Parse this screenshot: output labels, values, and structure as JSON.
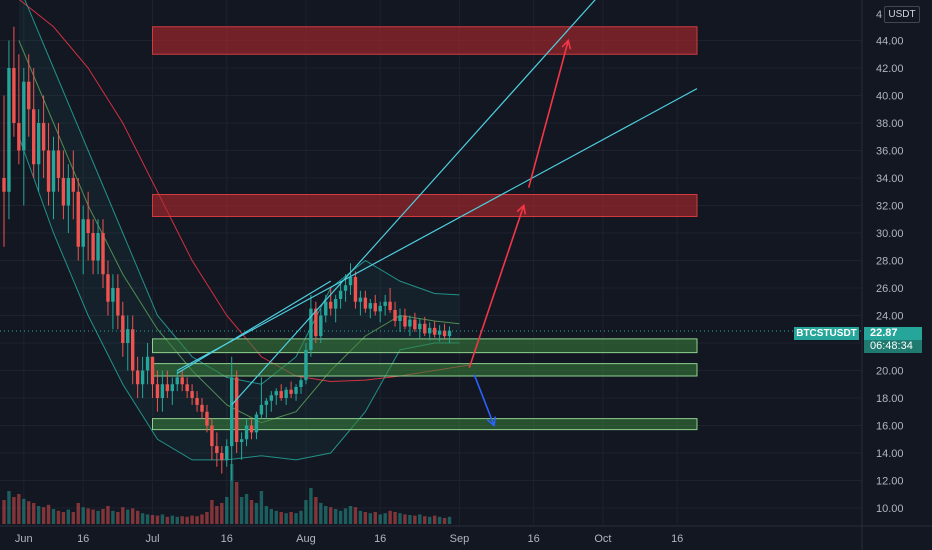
{
  "chart_data": {
    "type": "candlestick",
    "symbol": "BTCSTUSDT",
    "currency": "USDT",
    "last_price": "22.87",
    "countdown": "06:48:34",
    "y_axis": {
      "min": 9,
      "max": 46,
      "ticks": [
        "10.00",
        "12.00",
        "14.00",
        "16.00",
        "18.00",
        "20.00",
        "22.00",
        "24.00",
        "26.00",
        "28.00",
        "30.00",
        "32.00",
        "34.00",
        "36.00",
        "38.00",
        "40.00",
        "42.00",
        "44.00"
      ],
      "top_partial_label": "4"
    },
    "x_axis": {
      "labels": [
        {
          "text": "Jun",
          "day": 4
        },
        {
          "text": "16",
          "day": 16
        },
        {
          "text": "Jul",
          "day": 30
        },
        {
          "text": "16",
          "day": 45
        },
        {
          "text": "Aug",
          "day": 61
        },
        {
          "text": "16",
          "day": 76
        },
        {
          "text": "Sep",
          "day": 92
        },
        {
          "text": "16",
          "day": 107
        },
        {
          "text": "Oct",
          "day": 121
        },
        {
          "text": "16",
          "day": 136
        }
      ]
    },
    "candles": [
      [
        0,
        34,
        40,
        29,
        33
      ],
      [
        1,
        33,
        44,
        31,
        42
      ],
      [
        2,
        42,
        45,
        37,
        38
      ],
      [
        3,
        38,
        43,
        35,
        36
      ],
      [
        4,
        36,
        42,
        32,
        41
      ],
      [
        5,
        41,
        43,
        37,
        39
      ],
      [
        6,
        39,
        42,
        34,
        35
      ],
      [
        7,
        35,
        39,
        33,
        38
      ],
      [
        8,
        38,
        40,
        34,
        36
      ],
      [
        9,
        36,
        38,
        32,
        33
      ],
      [
        10,
        33,
        37,
        31,
        36
      ],
      [
        11,
        36,
        38,
        33,
        34
      ],
      [
        12,
        34,
        36,
        31,
        32
      ],
      [
        13,
        32,
        35,
        30,
        34
      ],
      [
        14,
        34,
        36,
        31,
        33
      ],
      [
        15,
        33,
        34,
        28,
        29
      ],
      [
        16,
        29,
        32,
        27,
        31
      ],
      [
        17,
        31,
        33,
        28,
        30
      ],
      [
        18,
        30,
        31,
        27,
        28
      ],
      [
        19,
        28,
        31,
        27,
        30
      ],
      [
        20,
        30,
        31,
        26,
        27
      ],
      [
        21,
        27,
        28,
        24,
        25
      ],
      [
        22,
        25,
        27,
        23,
        26
      ],
      [
        23,
        26,
        27,
        23,
        24
      ],
      [
        24,
        24,
        25,
        21,
        22
      ],
      [
        25,
        22,
        24,
        20,
        23
      ],
      [
        26,
        23,
        24,
        19,
        20
      ],
      [
        27,
        20,
        21,
        18,
        19
      ],
      [
        28,
        19,
        21,
        18,
        20
      ],
      [
        29,
        20,
        22,
        19,
        21
      ],
      [
        30,
        21,
        21,
        18,
        19
      ],
      [
        31,
        19,
        20,
        17,
        18
      ],
      [
        32,
        18,
        20,
        17,
        19
      ],
      [
        33,
        19,
        20,
        18,
        18.5
      ],
      [
        34,
        18.5,
        19.5,
        17.5,
        19
      ],
      [
        35,
        19,
        20,
        18.5,
        19.5
      ],
      [
        36,
        19.5,
        20,
        18.5,
        19
      ],
      [
        37,
        19,
        19.5,
        18,
        18.5
      ],
      [
        38,
        18.5,
        19,
        17.5,
        18
      ],
      [
        39,
        18,
        18.5,
        17,
        17.5
      ],
      [
        40,
        17.5,
        18,
        16.5,
        17
      ],
      [
        41,
        17,
        17.5,
        15.5,
        16
      ],
      [
        42,
        16,
        16.5,
        13.5,
        14.5
      ],
      [
        43,
        14.5,
        15.5,
        13,
        14
      ],
      [
        44,
        14,
        14.5,
        12.5,
        13.5
      ],
      [
        45,
        13.5,
        15,
        13,
        14.5
      ],
      [
        46,
        14.5,
        21,
        12,
        19.5
      ],
      [
        47,
        19.5,
        20,
        14,
        14.8
      ],
      [
        48,
        14.8,
        15.5,
        13.5,
        15
      ],
      [
        49,
        15,
        16.5,
        14.5,
        16
      ],
      [
        50,
        16,
        16.5,
        15,
        15.5
      ],
      [
        51,
        15.5,
        17,
        15,
        16.8
      ],
      [
        52,
        16.8,
        19.5,
        16.5,
        17.5
      ],
      [
        53,
        17.5,
        18,
        16.5,
        17.8
      ],
      [
        54,
        17.8,
        18.5,
        17,
        18.2
      ],
      [
        55,
        18.2,
        18.7,
        17.5,
        18.5
      ],
      [
        56,
        18.5,
        19,
        17.8,
        18
      ],
      [
        57,
        18,
        18.8,
        17.5,
        18.6
      ],
      [
        58,
        18.6,
        19.2,
        18,
        18.3
      ],
      [
        59,
        18.3,
        19,
        17.8,
        18.8
      ],
      [
        60,
        18.8,
        19.5,
        18.3,
        19.3
      ],
      [
        61,
        19.3,
        22,
        19,
        21.5
      ],
      [
        62,
        21.5,
        25.5,
        21,
        24.5
      ],
      [
        63,
        24.5,
        25,
        22,
        22.5
      ],
      [
        64,
        22.5,
        24.5,
        22,
        24
      ],
      [
        65,
        24,
        25.5,
        23.5,
        25
      ],
      [
        66,
        25,
        26,
        24,
        24.5
      ],
      [
        67,
        24.5,
        25.5,
        23.5,
        25.2
      ],
      [
        68,
        25.2,
        26.5,
        24.5,
        25.8
      ],
      [
        69,
        25.8,
        27,
        25,
        26.2
      ],
      [
        70,
        26.2,
        27.8,
        25.5,
        26.8
      ],
      [
        71,
        26.8,
        27.2,
        24.5,
        25
      ],
      [
        72,
        25,
        25.8,
        24,
        25.3
      ],
      [
        73,
        25.3,
        25.8,
        24.2,
        24.5
      ],
      [
        74,
        24.5,
        25.2,
        23.8,
        24.9
      ],
      [
        75,
        24.9,
        25.5,
        24,
        24.3
      ],
      [
        76,
        24.3,
        25,
        23.5,
        24.7
      ],
      [
        77,
        24.7,
        25.5,
        24,
        25
      ],
      [
        78,
        25,
        26,
        24.2,
        24.4
      ],
      [
        79,
        24.4,
        25,
        23.2,
        23.6
      ],
      [
        80,
        23.6,
        24.5,
        22.8,
        24
      ],
      [
        81,
        24,
        24.5,
        23,
        23.2
      ],
      [
        82,
        23.2,
        24,
        22.5,
        23.7
      ],
      [
        83,
        23.7,
        24.2,
        22.8,
        23
      ],
      [
        84,
        23,
        23.8,
        22.3,
        23.4
      ],
      [
        85,
        23.4,
        23.9,
        22.5,
        22.7
      ],
      [
        86,
        22.7,
        23.5,
        22.2,
        23.1
      ],
      [
        87,
        23.1,
        23.6,
        22.4,
        22.6
      ],
      [
        88,
        22.6,
        23.3,
        22.1,
        22.9
      ],
      [
        89,
        22.9,
        23.4,
        22.3,
        22.5
      ],
      [
        90,
        22.5,
        23.2,
        22,
        22.87
      ]
    ],
    "volume": [
      [
        0,
        0.4
      ],
      [
        1,
        0.55
      ],
      [
        2,
        0.45
      ],
      [
        3,
        0.5
      ],
      [
        4,
        0.42
      ],
      [
        5,
        0.38
      ],
      [
        6,
        0.35
      ],
      [
        7,
        0.3
      ],
      [
        8,
        0.28
      ],
      [
        9,
        0.32
      ],
      [
        10,
        0.25
      ],
      [
        11,
        0.22
      ],
      [
        12,
        0.2
      ],
      [
        13,
        0.24
      ],
      [
        14,
        0.2
      ],
      [
        15,
        0.35
      ],
      [
        16,
        0.28
      ],
      [
        17,
        0.26
      ],
      [
        18,
        0.24
      ],
      [
        19,
        0.22
      ],
      [
        20,
        0.25
      ],
      [
        21,
        0.3
      ],
      [
        22,
        0.22
      ],
      [
        23,
        0.2
      ],
      [
        24,
        0.28
      ],
      [
        25,
        0.24
      ],
      [
        26,
        0.26
      ],
      [
        27,
        0.22
      ],
      [
        28,
        0.18
      ],
      [
        29,
        0.16
      ],
      [
        30,
        0.15
      ],
      [
        31,
        0.14
      ],
      [
        32,
        0.16
      ],
      [
        33,
        0.12
      ],
      [
        34,
        0.14
      ],
      [
        35,
        0.12
      ],
      [
        36,
        0.13
      ],
      [
        37,
        0.12
      ],
      [
        38,
        0.14
      ],
      [
        39,
        0.13
      ],
      [
        40,
        0.16
      ],
      [
        41,
        0.2
      ],
      [
        42,
        0.4
      ],
      [
        43,
        0.3
      ],
      [
        44,
        0.35
      ],
      [
        45,
        0.45
      ],
      [
        46,
        1.0
      ],
      [
        47,
        0.7
      ],
      [
        48,
        0.45
      ],
      [
        49,
        0.5
      ],
      [
        50,
        0.4
      ],
      [
        51,
        0.35
      ],
      [
        52,
        0.55
      ],
      [
        53,
        0.3
      ],
      [
        54,
        0.25
      ],
      [
        55,
        0.22
      ],
      [
        56,
        0.2
      ],
      [
        57,
        0.18
      ],
      [
        58,
        0.2
      ],
      [
        59,
        0.18
      ],
      [
        60,
        0.22
      ],
      [
        61,
        0.4
      ],
      [
        62,
        0.6
      ],
      [
        63,
        0.45
      ],
      [
        64,
        0.35
      ],
      [
        65,
        0.3
      ],
      [
        66,
        0.28
      ],
      [
        67,
        0.25
      ],
      [
        68,
        0.22
      ],
      [
        69,
        0.26
      ],
      [
        70,
        0.3
      ],
      [
        71,
        0.28
      ],
      [
        72,
        0.22
      ],
      [
        73,
        0.2
      ],
      [
        74,
        0.18
      ],
      [
        75,
        0.2
      ],
      [
        76,
        0.16
      ],
      [
        77,
        0.18
      ],
      [
        78,
        0.22
      ],
      [
        79,
        0.2
      ],
      [
        80,
        0.18
      ],
      [
        81,
        0.16
      ],
      [
        82,
        0.15
      ],
      [
        83,
        0.14
      ],
      [
        84,
        0.16
      ],
      [
        85,
        0.13
      ],
      [
        86,
        0.12
      ],
      [
        87,
        0.14
      ],
      [
        88,
        0.12
      ],
      [
        89,
        0.1
      ],
      [
        90,
        0.12
      ]
    ],
    "zones": [
      {
        "kind": "resistance",
        "from_day": 30,
        "to_day": 140,
        "low": 43.0,
        "high": 45.0
      },
      {
        "kind": "resistance",
        "from_day": 30,
        "to_day": 140,
        "low": 31.2,
        "high": 32.8
      },
      {
        "kind": "support",
        "from_day": 30,
        "to_day": 140,
        "low": 21.3,
        "high": 22.3
      },
      {
        "kind": "support",
        "from_day": 30,
        "to_day": 140,
        "low": 19.6,
        "high": 20.5
      },
      {
        "kind": "support",
        "from_day": 30,
        "to_day": 140,
        "low": 15.7,
        "high": 16.5
      }
    ],
    "trendlines": [
      {
        "from": [
          46,
          17.5
        ],
        "to": [
          127,
          50.0
        ]
      },
      {
        "from": [
          35,
          20.0
        ],
        "to": [
          140,
          40.5
        ]
      },
      {
        "from": [
          35,
          19.8
        ],
        "to": [
          66,
          26.5
        ]
      }
    ],
    "projection_arrows": [
      {
        "color": "#f23645",
        "from": [
          94,
          20.2
        ],
        "to": [
          105,
          32.0
        ]
      },
      {
        "color": "#f23645",
        "from": [
          106,
          33.3
        ],
        "to": [
          114,
          44.0
        ]
      },
      {
        "color": "#2962ff",
        "from": [
          95,
          19.7
        ],
        "to": [
          99,
          16.0
        ]
      }
    ],
    "moving_averages": [
      {
        "color": "#f23645",
        "points": [
          [
            3,
            47
          ],
          [
            10,
            45
          ],
          [
            17,
            42
          ],
          [
            24,
            38
          ],
          [
            31,
            33
          ],
          [
            38,
            28
          ],
          [
            45,
            24
          ],
          [
            52,
            21
          ],
          [
            59,
            19.6
          ],
          [
            66,
            19.2
          ],
          [
            73,
            19.3
          ],
          [
            80,
            19.6
          ],
          [
            87,
            20.0
          ],
          [
            94,
            20.4
          ]
        ]
      },
      {
        "color": "#5da05a",
        "points": [
          [
            3,
            44
          ],
          [
            10,
            38
          ],
          [
            17,
            32
          ],
          [
            24,
            27
          ],
          [
            31,
            23
          ],
          [
            38,
            20
          ],
          [
            45,
            17.5
          ],
          [
            52,
            16.2
          ],
          [
            59,
            17.0
          ],
          [
            66,
            20.0
          ],
          [
            73,
            22.5
          ],
          [
            80,
            24.0
          ],
          [
            87,
            23.6
          ],
          [
            92,
            23.4
          ]
        ]
      },
      {
        "color": "#26a69a",
        "points": [
          [
            3,
            48
          ],
          [
            10,
            42
          ],
          [
            17,
            36
          ],
          [
            24,
            30
          ],
          [
            31,
            24
          ],
          [
            38,
            21
          ],
          [
            45,
            19.5
          ],
          [
            52,
            19.0
          ],
          [
            59,
            21.0
          ],
          [
            66,
            26.0
          ],
          [
            73,
            28.0
          ],
          [
            80,
            26.5
          ],
          [
            87,
            25.6
          ],
          [
            92,
            25.5
          ]
        ]
      },
      {
        "color": "#26a69a",
        "points": [
          [
            3,
            37
          ],
          [
            10,
            30
          ],
          [
            17,
            24
          ],
          [
            24,
            19
          ],
          [
            31,
            15
          ],
          [
            38,
            13.5
          ],
          [
            45,
            13.5
          ],
          [
            52,
            13.8
          ],
          [
            59,
            13.5
          ],
          [
            66,
            14.0
          ],
          [
            73,
            17.0
          ],
          [
            80,
            21.5
          ],
          [
            87,
            22.0
          ],
          [
            92,
            22.0
          ]
        ]
      }
    ],
    "colors": {
      "background": "#131722",
      "up": "#26a69a",
      "down": "#ef5350",
      "grid": "#1e222d",
      "resistance_fill": "#a0292e",
      "support_fill": "#2e6b2f",
      "trendline": "#4dd0e1"
    }
  }
}
